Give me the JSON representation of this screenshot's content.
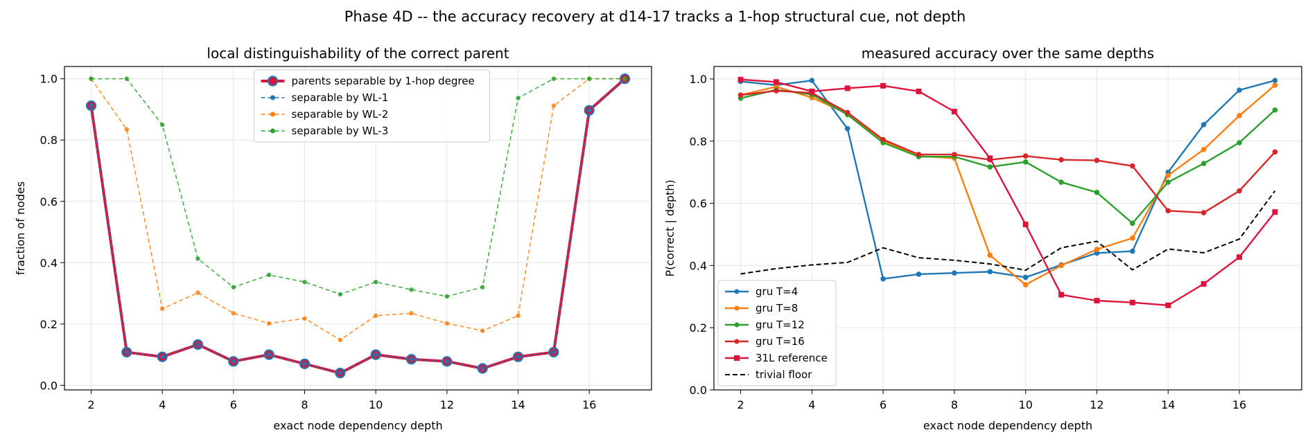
{
  "suptitle": "Phase 4D -- the accuracy recovery at d14-17 tracks a 1-hop structural cue, not depth",
  "chart_data": [
    {
      "type": "line",
      "title": "local distinguishability of the correct parent",
      "xlabel": "exact node dependency depth",
      "ylabel": "fraction of nodes",
      "xlim": [
        1.25,
        17.75
      ],
      "ylim": [
        -0.015,
        1.04
      ],
      "xticks": [
        "2",
        "4",
        "6",
        "8",
        "10",
        "12",
        "14",
        "16"
      ],
      "yticks": [
        "0.0",
        "0.2",
        "0.4",
        "0.6",
        "0.8",
        "1.0"
      ],
      "grid": true,
      "legend_position": "upper-center",
      "x": [
        2,
        3,
        4,
        5,
        6,
        7,
        8,
        9,
        10,
        11,
        12,
        13,
        14,
        15,
        16,
        17
      ],
      "series": [
        {
          "name": "parents separable by 1-hop degree",
          "color": "#dc143c",
          "style": "solid-thick",
          "marker": "circle-large",
          "values": [
            0.912,
            0.108,
            0.093,
            0.133,
            0.078,
            0.1,
            0.07,
            0.04,
            0.1,
            0.085,
            0.078,
            0.055,
            0.093,
            0.108,
            0.897,
            1.0
          ]
        },
        {
          "name": "separable by WL-1",
          "color": "#1f77b4",
          "style": "dashed",
          "marker": "circle",
          "values": [
            0.912,
            0.108,
            0.093,
            0.133,
            0.078,
            0.1,
            0.07,
            0.04,
            0.1,
            0.085,
            0.078,
            0.055,
            0.093,
            0.108,
            0.897,
            1.0
          ]
        },
        {
          "name": "separable by WL-2",
          "color": "#ff7f0e",
          "style": "dashed",
          "marker": "circle",
          "values": [
            1.0,
            0.835,
            0.25,
            0.302,
            0.235,
            0.202,
            0.218,
            0.148,
            0.227,
            0.235,
            0.202,
            0.178,
            0.227,
            0.912,
            1.0,
            1.0
          ]
        },
        {
          "name": "separable by WL-3",
          "color": "#2ca02c",
          "style": "dashed",
          "marker": "circle",
          "values": [
            1.0,
            1.0,
            0.85,
            0.413,
            0.32,
            0.36,
            0.337,
            0.297,
            0.337,
            0.312,
            0.29,
            0.32,
            0.937,
            1.0,
            1.0,
            1.0
          ]
        }
      ]
    },
    {
      "type": "line",
      "title": "measured accuracy over the same depths",
      "xlabel": "exact node dependency depth",
      "ylabel": "P(correct | depth)",
      "xlim": [
        1.25,
        17.75
      ],
      "ylim": [
        0.0,
        1.04
      ],
      "xticks": [
        "2",
        "4",
        "6",
        "8",
        "10",
        "12",
        "14",
        "16"
      ],
      "yticks": [
        "0.0",
        "0.2",
        "0.4",
        "0.6",
        "0.8",
        "1.0"
      ],
      "grid": true,
      "legend_position": "lower-left",
      "x": [
        2,
        3,
        4,
        5,
        6,
        7,
        8,
        9,
        10,
        11,
        12,
        13,
        14,
        15,
        16,
        17
      ],
      "series": [
        {
          "name": "gru T=4",
          "color": "#1f77b4",
          "style": "solid",
          "marker": "circle",
          "values": [
            0.992,
            0.98,
            0.995,
            0.84,
            0.357,
            0.372,
            0.376,
            0.38,
            0.362,
            0.402,
            0.44,
            0.446,
            0.7,
            0.853,
            0.964,
            0.995
          ]
        },
        {
          "name": "gru T=8",
          "color": "#ff7f0e",
          "style": "solid",
          "marker": "circle",
          "values": [
            0.948,
            0.975,
            0.94,
            0.888,
            0.8,
            0.752,
            0.745,
            0.433,
            0.338,
            0.4,
            0.452,
            0.488,
            0.69,
            0.773,
            0.882,
            0.98
          ]
        },
        {
          "name": "gru T=12",
          "color": "#2ca02c",
          "style": "solid",
          "marker": "circle",
          "values": [
            0.938,
            0.965,
            0.95,
            0.885,
            0.795,
            0.75,
            0.75,
            0.717,
            0.733,
            0.668,
            0.635,
            0.536,
            0.668,
            0.728,
            0.795,
            0.9
          ]
        },
        {
          "name": "gru T=16",
          "color": "#d62728",
          "style": "solid",
          "marker": "circle",
          "values": [
            0.948,
            0.962,
            0.955,
            0.892,
            0.805,
            0.757,
            0.757,
            0.74,
            0.752,
            0.74,
            0.738,
            0.72,
            0.576,
            0.57,
            0.64,
            0.765
          ]
        },
        {
          "name": "31L reference",
          "color": "#dc143c",
          "style": "solid",
          "marker": "square",
          "values": [
            0.998,
            0.99,
            0.96,
            0.97,
            0.978,
            0.96,
            0.895,
            0.745,
            0.532,
            0.306,
            0.287,
            0.281,
            0.272,
            0.341,
            0.427,
            0.572
          ]
        },
        {
          "name": "trivial floor",
          "color": "#000000",
          "style": "dashed",
          "marker": "none",
          "values": [
            0.373,
            0.39,
            0.402,
            0.41,
            0.457,
            0.425,
            0.417,
            0.405,
            0.385,
            0.457,
            0.478,
            0.386,
            0.453,
            0.441,
            0.485,
            0.64
          ]
        }
      ]
    }
  ]
}
